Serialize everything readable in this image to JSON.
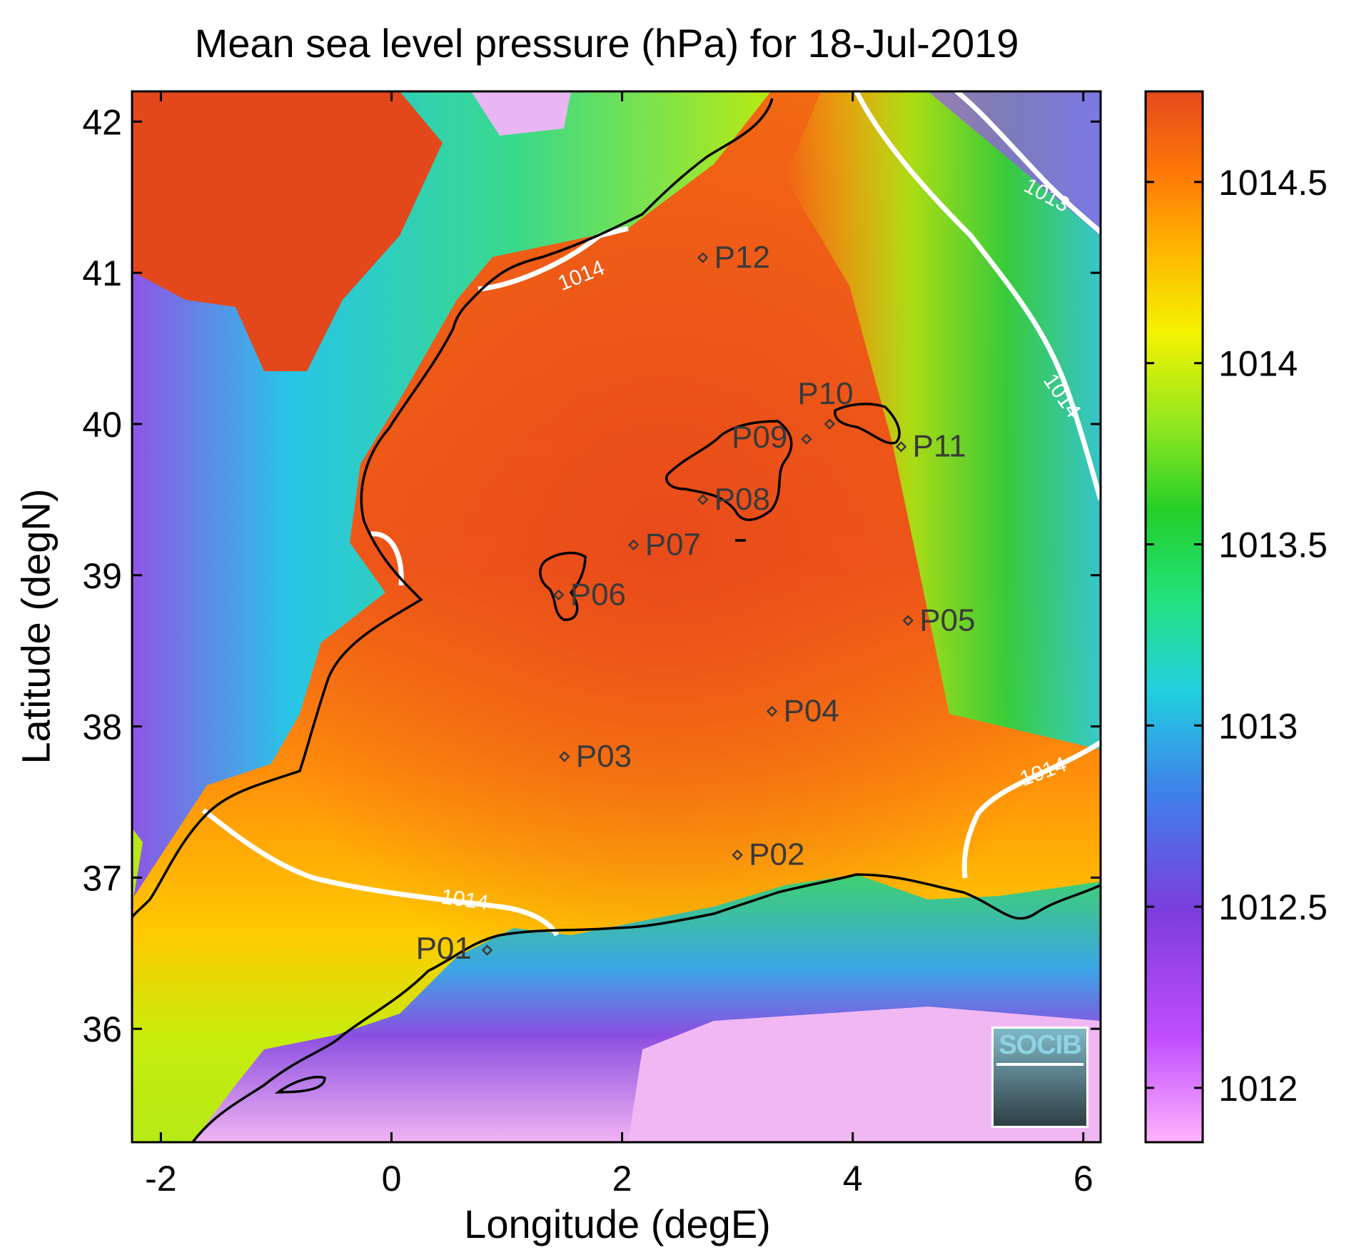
{
  "title": "Mean sea level pressure (hPa) for 18-Jul-2019",
  "xlabel": "Longitude (degE)",
  "ylabel": "Latitude (degN)",
  "xticks": [
    -2,
    0,
    2,
    4,
    6
  ],
  "yticks": [
    36,
    37,
    38,
    39,
    40,
    41,
    42
  ],
  "colorbar": {
    "ticks": [
      1012,
      1012.5,
      1013,
      1013.5,
      1014,
      1014.5
    ],
    "tick_labels": [
      "1012",
      "1012.5",
      "1013",
      "1013.5",
      "1014",
      "1014.5"
    ],
    "range": [
      1011.85,
      1014.75
    ],
    "colormap": [
      "#ffb3ff",
      "#c14dff",
      "#7d3ddd",
      "#3f7fea",
      "#22d0e0",
      "#22e27a",
      "#23cf29",
      "#8ee620",
      "#f4f300",
      "#ffb500",
      "#ff7a06",
      "#e44a1d"
    ]
  },
  "stations": [
    {
      "name": "P01",
      "lon": 0.83,
      "lat": 36.52
    },
    {
      "name": "P02",
      "lon": 3.0,
      "lat": 37.15
    },
    {
      "name": "P03",
      "lon": 1.5,
      "lat": 37.8
    },
    {
      "name": "P04",
      "lon": 3.3,
      "lat": 38.1
    },
    {
      "name": "P05",
      "lon": 4.48,
      "lat": 38.7
    },
    {
      "name": "P06",
      "lon": 1.45,
      "lat": 38.87
    },
    {
      "name": "P07",
      "lon": 2.1,
      "lat": 39.2
    },
    {
      "name": "P08",
      "lon": 2.7,
      "lat": 39.5
    },
    {
      "name": "P09",
      "lon": 3.6,
      "lat": 39.9
    },
    {
      "name": "P10",
      "lon": 3.8,
      "lat": 40.0
    },
    {
      "name": "P11",
      "lon": 4.42,
      "lat": 39.85
    },
    {
      "name": "P12",
      "lon": 2.7,
      "lat": 41.1
    }
  ],
  "contour_labels": [
    "1014",
    "1013",
    "1014",
    "1014",
    "1014"
  ],
  "logo": {
    "text": "SOCIB"
  }
}
